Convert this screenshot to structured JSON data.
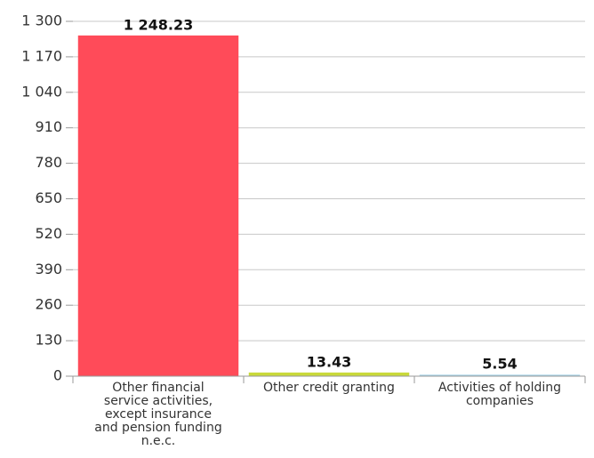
{
  "chart_data": {
    "type": "bar",
    "categories": [
      "Other financial service activities, except insurance and pension funding n.e.c.",
      "Other credit granting",
      "Activities of holding companies"
    ],
    "values": [
      1248.23,
      13.43,
      5.54
    ],
    "value_labels": [
      "1 248.23",
      "13.43",
      "5.54"
    ],
    "colors": [
      "#ff4b59",
      "#c9d93a",
      "#a8d4e8"
    ],
    "ylim": [
      0,
      1300
    ],
    "yticks": [
      0,
      130,
      260,
      390,
      520,
      650,
      780,
      910,
      {
        "value": 1040,
        "label": "1 040"
      },
      {
        "value": 1170,
        "label": "1 170"
      },
      {
        "value": 1300,
        "label": "1 300"
      }
    ],
    "grid": true
  }
}
